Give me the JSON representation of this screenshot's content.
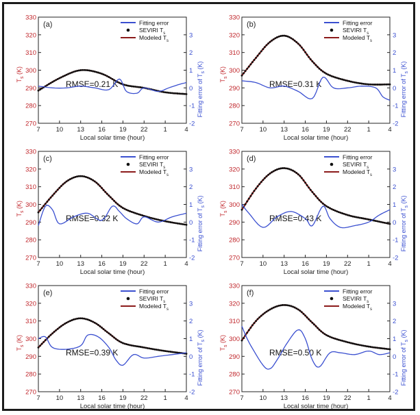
{
  "legend": {
    "fitting_error": "Fitting error",
    "seviri_prefix": "SEVIRI T",
    "modeled_prefix": "Modeled T",
    "subscript": "s"
  },
  "axes": {
    "left_label_main": "T",
    "left_label_sub": "s",
    "left_label_unit": " (K)",
    "right_label_main": "Fitting error of T",
    "right_label_sub": "s",
    "right_label_unit": " (K)",
    "x_label": "Local solar time (hour)",
    "x_ticks": [
      "7",
      "10",
      "13",
      "16",
      "19",
      "22",
      "1",
      "4"
    ],
    "y_left_ticks": [
      "270",
      "280",
      "290",
      "300",
      "310",
      "320",
      "330"
    ],
    "y_right_ticks": [
      "-2",
      "-1",
      "0",
      "1",
      "2",
      "3"
    ]
  },
  "colors": {
    "fitting_error": "#3a4fd0",
    "modeled": "#8b1a1a",
    "seviri": "#111111",
    "left_axis": "#c0262b",
    "right_axis": "#3a4fd0",
    "frame": "#1b1b1b"
  },
  "chart_data": [
    {
      "type": "line",
      "panel": "(a)",
      "rmse": "RMSE=0.21 K",
      "x_range_hours": [
        7,
        28
      ],
      "ylim_left": [
        270,
        330
      ],
      "ylim_right": [
        -2,
        3
      ],
      "ts_points": [
        [
          7,
          288.5
        ],
        [
          10,
          295.5
        ],
        [
          13,
          300
        ],
        [
          16,
          298
        ],
        [
          19,
          292
        ],
        [
          22,
          290
        ],
        [
          25,
          287.5
        ],
        [
          28,
          286.5
        ]
      ],
      "error_points": [
        [
          7,
          0.1
        ],
        [
          9,
          0
        ],
        [
          11,
          0
        ],
        [
          13,
          0.1
        ],
        [
          15,
          0
        ],
        [
          17,
          -0.1
        ],
        [
          18.5,
          0.5
        ],
        [
          19.5,
          -0.2
        ],
        [
          21,
          -0.3
        ],
        [
          22,
          0
        ],
        [
          24,
          -0.2
        ],
        [
          25.5,
          0
        ],
        [
          27,
          0.2
        ],
        [
          28,
          0.3
        ]
      ]
    },
    {
      "type": "line",
      "panel": "(b)",
      "rmse": "RMSE=0.31 K",
      "x_range_hours": [
        7,
        28
      ],
      "ylim_left": [
        270,
        330
      ],
      "ylim_right": [
        -2,
        3
      ],
      "ts_points": [
        [
          7,
          297
        ],
        [
          9,
          307
        ],
        [
          11,
          316
        ],
        [
          13,
          319.5
        ],
        [
          15,
          315
        ],
        [
          17,
          305
        ],
        [
          19,
          298
        ],
        [
          22,
          294
        ],
        [
          25,
          292
        ],
        [
          28,
          292
        ]
      ],
      "error_points": [
        [
          7,
          0.4
        ],
        [
          9,
          0.3
        ],
        [
          11,
          0
        ],
        [
          13,
          0.1
        ],
        [
          15,
          -0.2
        ],
        [
          17,
          -0.6
        ],
        [
          18.5,
          0.6
        ],
        [
          20,
          0
        ],
        [
          22,
          0
        ],
        [
          24,
          0.1
        ],
        [
          26,
          0
        ],
        [
          27,
          -0.5
        ],
        [
          28,
          -0.7
        ]
      ]
    },
    {
      "type": "line",
      "panel": "(c)",
      "rmse": "RMSE=0.32 K",
      "x_range_hours": [
        7,
        28
      ],
      "ylim_left": [
        270,
        330
      ],
      "ylim_right": [
        -2,
        3
      ],
      "ts_points": [
        [
          7,
          295.5
        ],
        [
          9,
          305
        ],
        [
          11,
          313
        ],
        [
          13,
          316
        ],
        [
          15,
          313
        ],
        [
          17,
          305
        ],
        [
          19,
          298
        ],
        [
          22,
          293.5
        ],
        [
          25,
          290.5
        ],
        [
          28,
          288.5
        ]
      ],
      "error_points": [
        [
          7,
          -0.2
        ],
        [
          8,
          0.9
        ],
        [
          9,
          0.7
        ],
        [
          10,
          -0.1
        ],
        [
          12,
          0.3
        ],
        [
          14,
          0.5
        ],
        [
          16,
          0.1
        ],
        [
          17.5,
          0.9
        ],
        [
          18.5,
          0.6
        ],
        [
          19.5,
          0.2
        ],
        [
          21,
          -0.1
        ],
        [
          22,
          0.3
        ],
        [
          24,
          0
        ],
        [
          26,
          0.3
        ],
        [
          28,
          0.5
        ]
      ]
    },
    {
      "type": "line",
      "panel": "(d)",
      "rmse": "RMSE=0.43 K",
      "x_range_hours": [
        7,
        28
      ],
      "ylim_left": [
        270,
        330
      ],
      "ylim_right": [
        -2,
        3
      ],
      "ts_points": [
        [
          7,
          297
        ],
        [
          9,
          309
        ],
        [
          11,
          317.5
        ],
        [
          13,
          320.5
        ],
        [
          15,
          317
        ],
        [
          17,
          307
        ],
        [
          19,
          299
        ],
        [
          22,
          294
        ],
        [
          25,
          291.5
        ],
        [
          28,
          289
        ]
      ],
      "error_points": [
        [
          7,
          1.0
        ],
        [
          8,
          0.5
        ],
        [
          10,
          -0.3
        ],
        [
          12,
          0.3
        ],
        [
          14,
          0.6
        ],
        [
          16,
          0.2
        ],
        [
          17,
          -0.2
        ],
        [
          18.5,
          0.9
        ],
        [
          19.5,
          0.2
        ],
        [
          21,
          -0.3
        ],
        [
          23,
          -0.2
        ],
        [
          25,
          0
        ],
        [
          26.5,
          0.4
        ],
        [
          28,
          0.7
        ]
      ]
    },
    {
      "type": "line",
      "panel": "(e)",
      "rmse": "RMSE=0.39 K",
      "x_range_hours": [
        7,
        28
      ],
      "ylim_left": [
        270,
        330
      ],
      "ylim_right": [
        -2,
        3
      ],
      "ts_points": [
        [
          7,
          295
        ],
        [
          9,
          303
        ],
        [
          11,
          309
        ],
        [
          13,
          311.5
        ],
        [
          15,
          309
        ],
        [
          17,
          303
        ],
        [
          19,
          297.5
        ],
        [
          22,
          295
        ],
        [
          25,
          293
        ],
        [
          28,
          291.5
        ]
      ],
      "error_points": [
        [
          7,
          1.0
        ],
        [
          8,
          1.1
        ],
        [
          9,
          0.5
        ],
        [
          11,
          0.4
        ],
        [
          13,
          0.6
        ],
        [
          14,
          1.2
        ],
        [
          15.5,
          1.1
        ],
        [
          17,
          0.5
        ],
        [
          18,
          -0.2
        ],
        [
          19,
          -0.5
        ],
        [
          20.5,
          0.1
        ],
        [
          22,
          -0.1
        ],
        [
          24,
          0
        ],
        [
          26,
          0.1
        ],
        [
          28,
          0.2
        ]
      ]
    },
    {
      "type": "line",
      "panel": "(f)",
      "rmse": "RMSE=0.50 K",
      "x_range_hours": [
        7,
        28
      ],
      "ylim_left": [
        270,
        330
      ],
      "ylim_right": [
        -2,
        3
      ],
      "ts_points": [
        [
          7,
          299
        ],
        [
          9,
          310
        ],
        [
          11,
          316.5
        ],
        [
          13,
          319
        ],
        [
          15,
          316.5
        ],
        [
          17,
          309
        ],
        [
          19,
          302
        ],
        [
          22,
          298
        ],
        [
          25,
          295.5
        ],
        [
          28,
          294
        ]
      ],
      "error_points": [
        [
          7,
          1.7
        ],
        [
          8,
          0.8
        ],
        [
          10,
          -0.5
        ],
        [
          11,
          -0.7
        ],
        [
          12,
          -0.2
        ],
        [
          13.5,
          0.8
        ],
        [
          15,
          1.5
        ],
        [
          16,
          1.0
        ],
        [
          17,
          -0.2
        ],
        [
          18,
          -0.6
        ],
        [
          19.5,
          0.2
        ],
        [
          21,
          0.2
        ],
        [
          23,
          0.1
        ],
        [
          25,
          0.3
        ],
        [
          26.5,
          0.1
        ],
        [
          28,
          0.2
        ]
      ]
    }
  ]
}
